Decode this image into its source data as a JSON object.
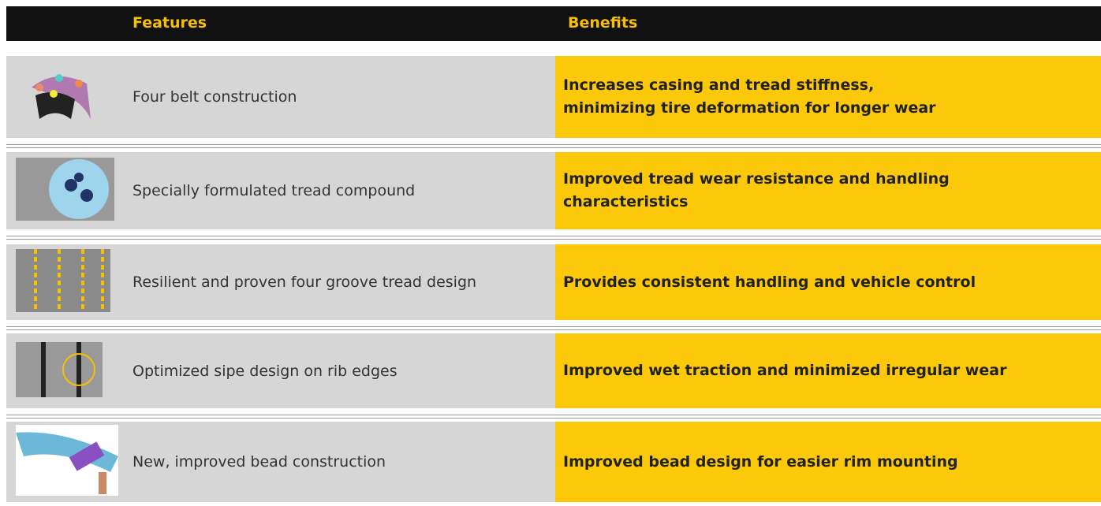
{
  "header": {
    "columns": [
      "Features",
      "Benefits"
    ]
  },
  "rows": [
    {
      "feature": "Four belt construction",
      "benefit": [
        "Increases casing and tread stiffness,",
        "minimizing tire deformation for longer wear"
      ]
    },
    {
      "feature": "Specially formulated tread compound",
      "benefit": [
        "Improved tread wear resistance and handling",
        "characteristics"
      ]
    },
    {
      "feature": "Resilient and proven four groove tread design",
      "benefit": [
        "Provides consistent handling and vehicle control"
      ]
    },
    {
      "feature": "Optimized sipe design on rib edges",
      "benefit": [
        "Improved wet traction and minimized irregular wear"
      ]
    },
    {
      "feature": "New, improved bead construction",
      "benefit": [
        "Improved bead design for easier rim mounting"
      ]
    }
  ]
}
